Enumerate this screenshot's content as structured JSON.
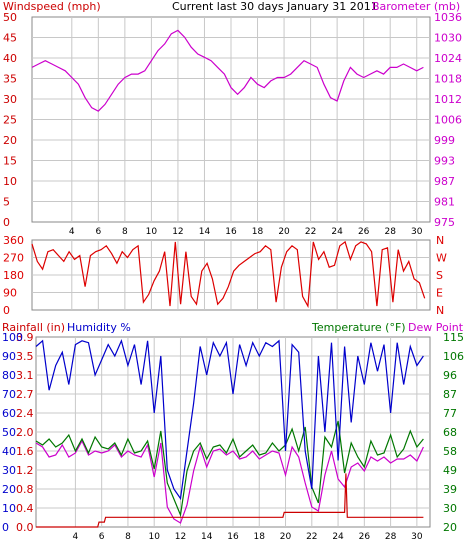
{
  "colors": {
    "wind": "#cc0000",
    "wind_avg": "#0000cc",
    "wind_low": "#008800",
    "baro": "#cc00cc",
    "dir": "#dd0000",
    "rain": "#cc0000",
    "humid": "#0000cc",
    "temp": "#007700",
    "dew": "#cc00cc",
    "grid": "#c8c8c8",
    "frame": "#888888"
  },
  "panel1": {
    "title": "Current last 30 days January 31 2011",
    "left_label": "Windspeed (mph)",
    "right_label": "Barometer (mb)"
  },
  "panel3": {
    "rain_label": "Rainfall (in)",
    "humid_label": "Humidity %",
    "temp_label": "Temperature (°F)",
    "dew_label": "Dew Point"
  },
  "chart_data": [
    {
      "type": "line",
      "x_ticks": [
        "4",
        "6",
        "8",
        "10",
        "12",
        "14",
        "16",
        "18",
        "20",
        "22",
        "24",
        "26",
        "28",
        "30"
      ],
      "xlim": [
        1,
        31
      ],
      "left_axis": {
        "ticks": [
          "0",
          "5",
          "10",
          "15",
          "20",
          "25",
          "30",
          "35",
          "40",
          "45",
          "50"
        ],
        "ylim": [
          0,
          50
        ]
      },
      "right_axis": {
        "ticks": [
          "975",
          "981",
          "987",
          "993",
          "999",
          "1006",
          "1012",
          "1018",
          "1024",
          "1030",
          "1036"
        ],
        "ylim": [
          975,
          1036
        ]
      },
      "series": [
        {
          "name": "Barometer (mb)",
          "axis": "right",
          "x": [
            1,
            1.5,
            2,
            2.5,
            3,
            3.5,
            4,
            4.5,
            5,
            5.5,
            6,
            6.5,
            7,
            7.5,
            8,
            8.5,
            9,
            9.5,
            10,
            10.5,
            11,
            11.5,
            12,
            12.5,
            13,
            13.5,
            14,
            14.5,
            15,
            15.5,
            16,
            16.5,
            17,
            17.5,
            18,
            18.5,
            19,
            19.5,
            20,
            20.5,
            21,
            21.5,
            22,
            22.5,
            23,
            23.5,
            24,
            24.5,
            25,
            25.5,
            26,
            26.5,
            27,
            27.5,
            28,
            28.5,
            29,
            29.5,
            30,
            30.5
          ],
          "values": [
            1021,
            1022,
            1023,
            1022,
            1021,
            1020,
            1018,
            1016,
            1012,
            1009,
            1008,
            1010,
            1013,
            1016,
            1018,
            1019,
            1019,
            1020,
            1023,
            1026,
            1028,
            1031,
            1032,
            1030,
            1027,
            1025,
            1024,
            1023,
            1021,
            1019,
            1015,
            1013,
            1015,
            1018,
            1016,
            1015,
            1017,
            1018,
            1018,
            1019,
            1021,
            1023,
            1022,
            1021,
            1016,
            1012,
            1011,
            1017,
            1021,
            1019,
            1018,
            1019,
            1020,
            1019,
            1021,
            1021,
            1022,
            1021,
            1020,
            1021
          ]
        }
      ]
    },
    {
      "type": "line",
      "x_ticks": [
        "4",
        "6",
        "8",
        "10",
        "12",
        "14",
        "16",
        "18",
        "20",
        "22",
        "24",
        "26",
        "28",
        "30"
      ],
      "left_axis": {
        "ticks": [
          "0",
          "90",
          "180",
          "270",
          "360"
        ],
        "ylim": [
          0,
          360
        ]
      },
      "right_axis": {
        "ticks": [
          "N",
          "E",
          "S",
          "W",
          "N"
        ]
      },
      "series": [
        {
          "name": "Wind direction",
          "x": [
            1,
            1.4,
            1.8,
            2.2,
            2.6,
            3,
            3.4,
            3.8,
            4.2,
            4.6,
            5,
            5.4,
            5.8,
            6.2,
            6.6,
            7,
            7.4,
            7.8,
            8.2,
            8.6,
            9,
            9.4,
            9.8,
            10.2,
            10.6,
            11,
            11.4,
            11.8,
            12.2,
            12.6,
            13,
            13.4,
            13.8,
            14.2,
            14.6,
            15,
            15.4,
            15.8,
            16.2,
            16.6,
            17,
            17.4,
            17.8,
            18.2,
            18.6,
            19,
            19.4,
            19.8,
            20.2,
            20.6,
            21,
            21.4,
            21.8,
            22.2,
            22.6,
            23,
            23.4,
            23.8,
            24.2,
            24.6,
            25,
            25.4,
            25.8,
            26.2,
            26.6,
            27,
            27.4,
            27.8,
            28.2,
            28.6,
            29,
            29.4,
            29.8,
            30.2,
            30.6
          ],
          "values": [
            340,
            250,
            210,
            300,
            310,
            280,
            250,
            300,
            260,
            280,
            120,
            280,
            300,
            310,
            330,
            290,
            240,
            300,
            270,
            310,
            330,
            40,
            80,
            150,
            200,
            300,
            20,
            350,
            30,
            300,
            70,
            30,
            200,
            240,
            160,
            30,
            60,
            120,
            200,
            230,
            250,
            270,
            290,
            300,
            330,
            310,
            40,
            220,
            300,
            330,
            310,
            70,
            20,
            350,
            260,
            300,
            220,
            230,
            330,
            350,
            260,
            330,
            350,
            340,
            300,
            20,
            310,
            320,
            40,
            310,
            200,
            250,
            160,
            140,
            60
          ]
        }
      ]
    },
    {
      "type": "line",
      "x_ticks": [
        "4",
        "6",
        "8",
        "10",
        "12",
        "14",
        "16",
        "18",
        "20",
        "22",
        "24",
        "26",
        "28",
        "30"
      ],
      "left_axis": {
        "rain_ticks": [
          "0.0",
          "0.4",
          "0.8",
          "1.2",
          "1.6",
          "2.0",
          "2.4",
          "2.7",
          "3.1",
          "3.5",
          "3.9"
        ],
        "rain_ylim": [
          0,
          3.9
        ],
        "humid_ticks": [
          "0",
          "10",
          "20",
          "30",
          "40",
          "50",
          "60",
          "70",
          "80",
          "90",
          "100"
        ],
        "humid_ylim": [
          0,
          100
        ]
      },
      "right_axis": {
        "ticks": [
          "20",
          "30",
          "39",
          "49",
          "58",
          "68",
          "77",
          "87",
          "96",
          "106",
          "115"
        ],
        "ylim": [
          20,
          115
        ]
      },
      "series": [
        {
          "name": "Humidity %",
          "axis": "humid",
          "x": [
            1,
            1.5,
            2,
            2.5,
            3,
            3.5,
            4,
            4.5,
            5,
            5.5,
            6,
            6.5,
            7,
            7.5,
            8,
            8.5,
            9,
            9.5,
            10,
            10.5,
            11,
            11.5,
            12,
            12.5,
            13,
            13.5,
            14,
            14.5,
            15,
            15.5,
            16,
            16.5,
            17,
            17.5,
            18,
            18.5,
            19,
            19.5,
            20,
            20.5,
            21,
            21.5,
            22,
            22.5,
            23,
            23.5,
            24,
            24.5,
            25,
            25.5,
            26,
            26.5,
            27,
            27.5,
            28,
            28.5,
            29,
            29.5,
            30,
            30.5
          ],
          "values": [
            95,
            98,
            72,
            85,
            92,
            75,
            96,
            98,
            97,
            80,
            88,
            96,
            90,
            98,
            85,
            96,
            75,
            98,
            60,
            90,
            30,
            20,
            15,
            40,
            65,
            95,
            80,
            97,
            90,
            97,
            70,
            96,
            85,
            97,
            90,
            97,
            95,
            98,
            40,
            96,
            92,
            40,
            20,
            90,
            50,
            97,
            35,
            95,
            55,
            90,
            75,
            97,
            82,
            96,
            60,
            97,
            75,
            95,
            85,
            90
          ]
        },
        {
          "name": "Temperature (°F)",
          "axis": "right",
          "x": [
            1,
            1.5,
            2,
            2.5,
            3,
            3.5,
            4,
            4.5,
            5,
            5.5,
            6,
            6.5,
            7,
            7.5,
            8,
            8.5,
            9,
            9.5,
            10,
            10.5,
            11,
            11.5,
            12,
            12.5,
            13,
            13.5,
            14,
            14.5,
            15,
            15.5,
            16,
            16.5,
            17,
            17.5,
            18,
            18.5,
            19,
            19.5,
            20,
            20.5,
            21,
            21.5,
            22,
            22.5,
            23,
            23.5,
            24,
            24.5,
            25,
            25.5,
            26,
            26.5,
            27,
            27.5,
            28,
            28.5,
            29,
            29.5,
            30,
            30.5
          ],
          "values": [
            63,
            61,
            64,
            60,
            62,
            66,
            58,
            64,
            57,
            65,
            60,
            59,
            62,
            56,
            64,
            57,
            58,
            63,
            49,
            68,
            42,
            34,
            26,
            48,
            58,
            62,
            54,
            60,
            61,
            57,
            64,
            55,
            58,
            61,
            56,
            57,
            62,
            58,
            61,
            69,
            58,
            70,
            40,
            32,
            65,
            60,
            73,
            47,
            62,
            55,
            50,
            63,
            56,
            57,
            66,
            55,
            59,
            68,
            60,
            64
          ]
        },
        {
          "name": "Dew Point",
          "axis": "right",
          "x": [
            1,
            1.5,
            2,
            2.5,
            3,
            3.5,
            4,
            4.5,
            5,
            5.5,
            6,
            6.5,
            7,
            7.5,
            8,
            8.5,
            9,
            9.5,
            10,
            10.5,
            11,
            11.5,
            12,
            12.5,
            13,
            13.5,
            14,
            14.5,
            15,
            15.5,
            16,
            16.5,
            17,
            17.5,
            18,
            18.5,
            19,
            19.5,
            20,
            20.5,
            21,
            21.5,
            22,
            22.5,
            23,
            23.5,
            24,
            24.5,
            25,
            25.5,
            26,
            26.5,
            27,
            27.5,
            28,
            28.5,
            29,
            29.5,
            30,
            30.5
          ],
          "values": [
            62,
            60,
            55,
            56,
            61,
            55,
            57,
            63,
            56,
            58,
            57,
            58,
            61,
            55,
            58,
            56,
            55,
            61,
            45,
            62,
            30,
            24,
            22,
            31,
            48,
            60,
            50,
            58,
            59,
            56,
            58,
            54,
            55,
            58,
            54,
            56,
            58,
            57,
            46,
            60,
            55,
            42,
            30,
            28,
            46,
            58,
            44,
            40,
            50,
            52,
            48,
            55,
            53,
            55,
            52,
            54,
            54,
            56,
            53,
            60
          ]
        },
        {
          "name": "Rainfall (in)",
          "axis": "rain",
          "x": [
            1,
            5.7,
            5.8,
            6.2,
            6.3,
            19.8,
            19.9,
            20.4,
            20.5,
            24.5,
            24.6,
            24.7,
            25.3,
            25.4,
            30.5
          ],
          "values": [
            0,
            0,
            0.1,
            0.1,
            0.2,
            0.2,
            0.3,
            0.3,
            0.3,
            0.3,
            1.1,
            0.2,
            0.2,
            0.2,
            0.2
          ]
        }
      ]
    }
  ]
}
